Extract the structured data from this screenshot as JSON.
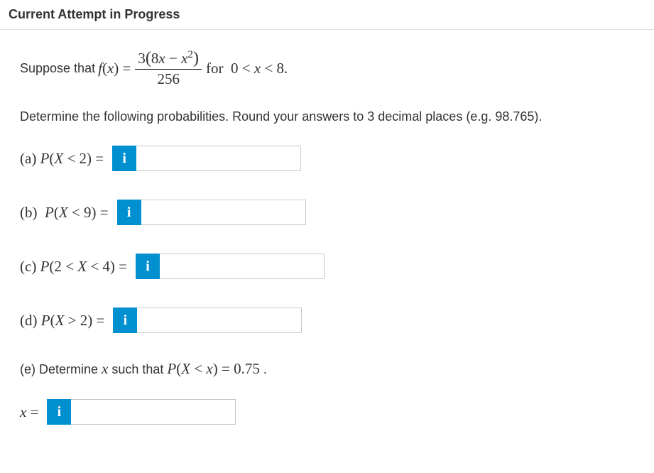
{
  "header": {
    "title": "Current Attempt in Progress"
  },
  "formula": {
    "prefix": "Suppose that",
    "func_lhs_html": "<span class='ital'>f</span>(<span class='ital'>x</span>) =",
    "numerator_html": "3<span style='font-size:1.15em'>(</span>8<span class='ital'>x</span> − <span class='ital'>x</span><span class='sup'>2</span><span style='font-size:1.15em'>)</span>",
    "denominator": "256",
    "suffix_html": " for&nbsp; 0 &lt; <span class='ital'>x</span> &lt; 8."
  },
  "instruction": "Determine the following probabilities. Round your answers to 3 decimal places (e.g. 98.765).",
  "parts": {
    "a": {
      "label_html": "(a) <span class='ital'>P</span>(<span class='ital'>X</span> &lt; 2) ="
    },
    "b": {
      "label_html": "(b)&nbsp; <span class='ital'>P</span>(<span class='ital'>X</span> &lt; 9) ="
    },
    "c": {
      "label_html": "(c) <span class='ital'>P</span>(2 &lt; <span class='ital'>X</span> &lt; 4) ="
    },
    "d": {
      "label_html": "(d) <span class='ital'>P</span>(<span class='ital'>X</span> &gt; 2) ="
    },
    "e": {
      "text_html": "(e) Determine <span class='serif ital'>x</span> such that <span class='serif'><span class='ital'>P</span>(<span class='ital'>X</span> &lt; <span class='ital'>x</span>) = 0.75</span> .",
      "input_label_html": "<span class='ital'>x</span> ="
    }
  },
  "info_icon": "i",
  "colors": {
    "accent": "#0090d0",
    "text": "#333333",
    "border": "#c9c9c9",
    "divider": "#e0e0e0"
  }
}
